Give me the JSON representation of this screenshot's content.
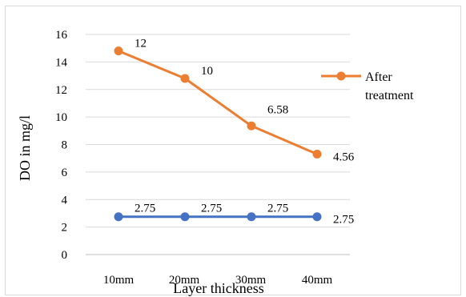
{
  "chart_data": {
    "type": "line",
    "categories": [
      "10mm",
      "20mm",
      "30mm",
      "40mm"
    ],
    "xlabel": "Layer thickness",
    "ylabel": "DO in mg/l",
    "ylim": [
      0,
      16
    ],
    "yticks": [
      "0",
      "2",
      "4",
      "6",
      "8",
      "10",
      "12",
      "14",
      "16"
    ],
    "grid": true,
    "legend_position": "right",
    "series": [
      {
        "name": "After treatment",
        "color": "#ED7D31",
        "values": [
          14.8,
          12.8,
          9.35,
          7.3
        ],
        "data_labels": [
          "12",
          "10",
          "6.58",
          "4.56"
        ],
        "show_in_legend": true
      },
      {
        "name": "",
        "color": "#4472C4",
        "values": [
          2.75,
          2.75,
          2.75,
          2.75
        ],
        "data_labels": [
          "2.75",
          "2.75",
          "2.75",
          "2.75"
        ],
        "show_in_legend": false
      }
    ],
    "legend": {
      "line1": "After",
      "line2": "treatment"
    }
  }
}
